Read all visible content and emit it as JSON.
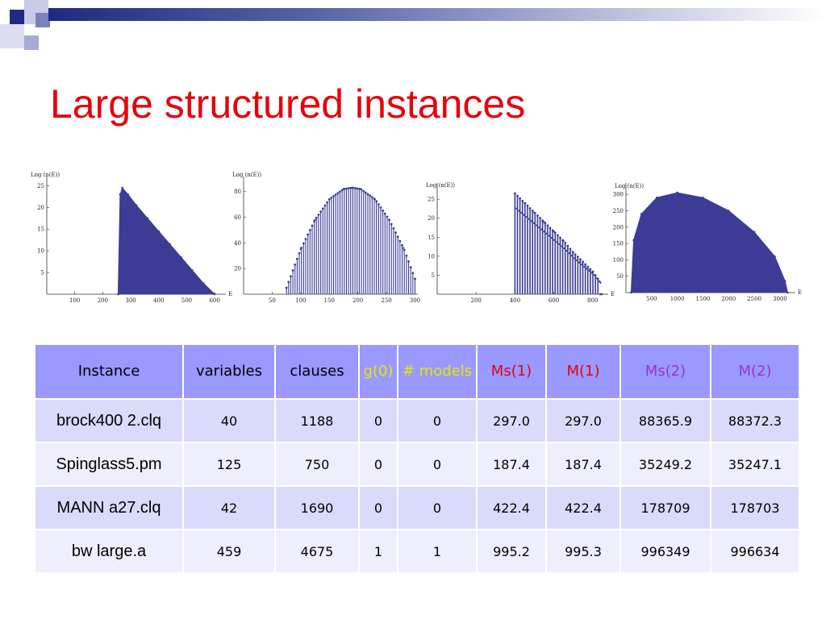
{
  "title": "Large structured instances",
  "colors": {
    "title": "#e8000b",
    "fill": "#3c3c96",
    "header_bg": "#9999ff",
    "row_odd": "#dadafa",
    "row_even": "#eeeefc",
    "yellow": "#e6e600",
    "red": "#e8000b",
    "purple": "#9933cc"
  },
  "chart_data": [
    {
      "type": "area",
      "ylabel": "Log (n(E))",
      "xlabel": "E",
      "xticks": [
        100,
        200,
        300,
        400,
        500,
        600
      ],
      "yticks": [
        5,
        10,
        15,
        20,
        25
      ],
      "xlim": [
        0,
        640
      ],
      "ylim": [
        0,
        26
      ],
      "x": [
        255,
        262,
        270,
        290,
        320,
        360,
        400,
        440,
        480,
        520,
        560,
        600
      ],
      "values": [
        0,
        23,
        24.5,
        23,
        20.5,
        17.5,
        14.5,
        11.5,
        8.5,
        5.5,
        2.5,
        0
      ]
    },
    {
      "type": "bar",
      "ylabel": "Log (n(E))",
      "xlabel": "",
      "xticks": [
        50,
        100,
        150,
        200,
        250,
        300
      ],
      "yticks": [
        20,
        40,
        60,
        80
      ],
      "xlim": [
        0,
        305
      ],
      "ylim": [
        0,
        88
      ],
      "x": [
        75,
        100,
        125,
        150,
        175,
        190,
        205,
        230,
        255,
        280,
        300
      ],
      "values": [
        5,
        35,
        58,
        74,
        82,
        83,
        82,
        74,
        58,
        36,
        12
      ]
    },
    {
      "type": "bar",
      "ylabel": "Log (n(E))",
      "xlabel": "E",
      "xticks": [
        200,
        400,
        600,
        800
      ],
      "yticks": [
        5,
        10,
        15,
        20,
        25
      ],
      "xlim": [
        0,
        880
      ],
      "ylim": [
        0,
        28
      ],
      "x": [
        400,
        450,
        500,
        550,
        600,
        650,
        700,
        750,
        800,
        840
      ],
      "values": [
        26.5,
        24,
        21.5,
        19,
        16.5,
        14,
        11,
        8.5,
        6,
        3
      ]
    },
    {
      "type": "area",
      "ylabel": "Log (n(E))",
      "xlabel": "E",
      "xticks": [
        500,
        1000,
        1500,
        2000,
        2500,
        3000
      ],
      "yticks": [
        50,
        100,
        150,
        200,
        250,
        300
      ],
      "xlim": [
        0,
        3300
      ],
      "ylim": [
        0,
        320
      ],
      "x": [
        100,
        150,
        300,
        600,
        1000,
        1500,
        2000,
        2500,
        2900,
        3100,
        3150
      ],
      "values": [
        0,
        160,
        240,
        290,
        305,
        290,
        250,
        185,
        110,
        35,
        0
      ]
    }
  ],
  "table": {
    "headers": [
      {
        "text": "Instance",
        "color": "#000000"
      },
      {
        "text": "variables",
        "color": "#000000"
      },
      {
        "text": "clauses",
        "color": "#000000"
      },
      {
        "text": "g(0)",
        "color": "#e6e600"
      },
      {
        "text": "# models",
        "color": "#e6e600"
      },
      {
        "text": "Ms(1)",
        "color": "#e8000b"
      },
      {
        "text": "M(1)",
        "color": "#e8000b"
      },
      {
        "text": "Ms(2)",
        "color": "#9933cc"
      },
      {
        "text": "M(2)",
        "color": "#9933cc"
      }
    ],
    "rows": [
      [
        "brock400 2.clq",
        "40",
        "1188",
        "0",
        "0",
        "297.0",
        "297.0",
        "88365.9",
        "88372.3"
      ],
      [
        "Spinglass5.pm",
        "125",
        "750",
        "0",
        "0",
        "187.4",
        "187.4",
        "35249.2",
        "35247.1"
      ],
      [
        "MANN a27.clq",
        "42",
        "1690",
        "0",
        "0",
        "422.4",
        "422.4",
        "178709",
        "178703"
      ],
      [
        "bw large.a",
        "459",
        "4675",
        "1",
        "1",
        "995.2",
        "995.3",
        "996349",
        "996634"
      ]
    ]
  }
}
